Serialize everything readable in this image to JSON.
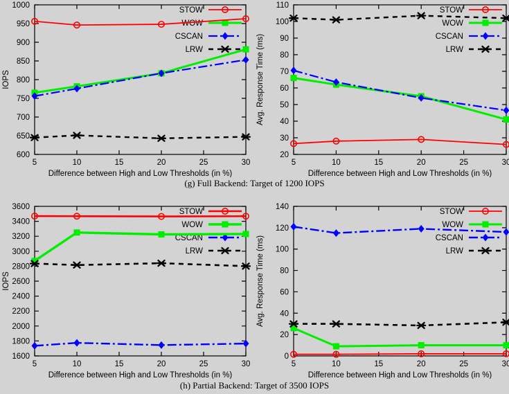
{
  "figure": {
    "background_color": "#d3d3d3",
    "caption_g": "(g) Full Backend: Target of 1200 IOPS",
    "caption_h": "(h) Partial Backend: Target of 3500 IOPS"
  },
  "legend_labels": [
    "STOW",
    "WOW",
    "CSCAN",
    "LRW"
  ],
  "colors": {
    "stow": "#ff0000",
    "wow": "#00ee00",
    "cscan": "#0000ff",
    "lrw": "#000000",
    "axis": "#000000"
  },
  "chart_data": [
    {
      "id": "full-backend-iops",
      "type": "line",
      "xlabel": "Difference between High and Low Thresholds (in %)",
      "ylabel": "IOPS",
      "x": [
        5,
        10,
        20,
        30
      ],
      "xticks": [
        5,
        10,
        15,
        20,
        25,
        30
      ],
      "xlim": [
        5,
        30
      ],
      "yticks": [
        600,
        650,
        700,
        750,
        800,
        850,
        900,
        950,
        1000
      ],
      "ylim": [
        600,
        1000
      ],
      "grid": false,
      "legend_position": "top-right-inside",
      "series": [
        {
          "name": "STOW",
          "color": "#ff0000",
          "line": "solid",
          "marker": "open-circle",
          "width": 1.8,
          "values": [
            956,
            946,
            948,
            963
          ]
        },
        {
          "name": "WOW",
          "color": "#00ee00",
          "line": "solid",
          "marker": "filled-square",
          "width": 3.0,
          "values": [
            765,
            782,
            817,
            881
          ]
        },
        {
          "name": "CSCAN",
          "color": "#0000ff",
          "line": "dash-dot",
          "marker": "filled-diamond",
          "width": 2.2,
          "values": [
            756,
            776,
            817,
            853
          ]
        },
        {
          "name": "LRW",
          "color": "#000000",
          "line": "dashed",
          "marker": "asterisk",
          "width": 2.4,
          "values": [
            645,
            651,
            643,
            647
          ]
        }
      ]
    },
    {
      "id": "full-backend-response-time",
      "type": "line",
      "xlabel": "Difference between High and Low Thresholds (in %)",
      "ylabel": "Avg. Response Time (ms)",
      "x": [
        5,
        10,
        20,
        30
      ],
      "xticks": [
        5,
        10,
        15,
        20,
        25,
        30
      ],
      "xlim": [
        5,
        30
      ],
      "yticks": [
        20,
        30,
        40,
        50,
        60,
        70,
        80,
        90,
        100,
        110
      ],
      "ylim": [
        20,
        110
      ],
      "grid": false,
      "legend_position": "top-right-inside",
      "series": [
        {
          "name": "STOW",
          "color": "#ff0000",
          "line": "solid",
          "marker": "open-circle",
          "width": 1.8,
          "values": [
            26.5,
            28,
            29,
            26
          ]
        },
        {
          "name": "WOW",
          "color": "#00ee00",
          "line": "solid",
          "marker": "filled-square",
          "width": 3.0,
          "values": [
            66,
            62,
            55,
            41
          ]
        },
        {
          "name": "CSCAN",
          "color": "#0000ff",
          "line": "dash-dot",
          "marker": "filled-diamond",
          "width": 2.2,
          "values": [
            70.5,
            63.5,
            54,
            46.5
          ]
        },
        {
          "name": "LRW",
          "color": "#000000",
          "line": "dashed",
          "marker": "asterisk",
          "width": 2.4,
          "values": [
            102,
            101,
            103.5,
            102
          ]
        }
      ]
    },
    {
      "id": "partial-backend-iops",
      "type": "line",
      "xlabel": "Difference between High and Low Thresholds (in %)",
      "ylabel": "IOPS",
      "x": [
        5,
        10,
        20,
        30
      ],
      "xticks": [
        5,
        10,
        15,
        20,
        25,
        30
      ],
      "xlim": [
        5,
        30
      ],
      "yticks": [
        1600,
        1800,
        2000,
        2200,
        2400,
        2600,
        2800,
        3000,
        3200,
        3400,
        3600
      ],
      "ylim": [
        1600,
        3600
      ],
      "grid": false,
      "legend_position": "top-right-inside",
      "series": [
        {
          "name": "STOW",
          "color": "#ff0000",
          "line": "solid",
          "marker": "open-circle",
          "width": 2.6,
          "values": [
            3470,
            3468,
            3465,
            3468
          ]
        },
        {
          "name": "WOW",
          "color": "#00ee00",
          "line": "solid",
          "marker": "filled-square",
          "width": 3.4,
          "values": [
            2870,
            3250,
            3225,
            3230
          ]
        },
        {
          "name": "CSCAN",
          "color": "#0000ff",
          "line": "dash-dot",
          "marker": "filled-diamond",
          "width": 2.4,
          "values": [
            1735,
            1775,
            1745,
            1765
          ]
        },
        {
          "name": "LRW",
          "color": "#000000",
          "line": "dashed",
          "marker": "asterisk",
          "width": 2.6,
          "values": [
            2835,
            2815,
            2840,
            2800
          ]
        }
      ]
    },
    {
      "id": "partial-backend-response-time",
      "type": "line",
      "xlabel": "Difference between High and Low Thresholds (in %)",
      "ylabel": "Avg. Response Time (ms)",
      "x": [
        5,
        10,
        20,
        30
      ],
      "xticks": [
        5,
        10,
        15,
        20,
        25,
        30
      ],
      "xlim": [
        5,
        30
      ],
      "yticks": [
        0,
        20,
        40,
        60,
        80,
        100,
        120,
        140
      ],
      "ylim": [
        0,
        140
      ],
      "grid": false,
      "legend_position": "top-right-inside",
      "series": [
        {
          "name": "STOW",
          "color": "#ff0000",
          "line": "solid",
          "marker": "open-circle",
          "width": 1.8,
          "values": [
            1.5,
            1.5,
            2,
            2
          ]
        },
        {
          "name": "WOW",
          "color": "#00ee00",
          "line": "solid",
          "marker": "filled-square",
          "width": 3.0,
          "values": [
            26,
            9,
            10,
            10
          ]
        },
        {
          "name": "CSCAN",
          "color": "#0000ff",
          "line": "dash-dot",
          "marker": "filled-diamond",
          "width": 2.4,
          "values": [
            121,
            115,
            119,
            116
          ]
        },
        {
          "name": "LRW",
          "color": "#000000",
          "line": "dashed",
          "marker": "asterisk",
          "width": 2.6,
          "values": [
            30,
            30,
            28.5,
            31.5
          ]
        }
      ]
    }
  ]
}
